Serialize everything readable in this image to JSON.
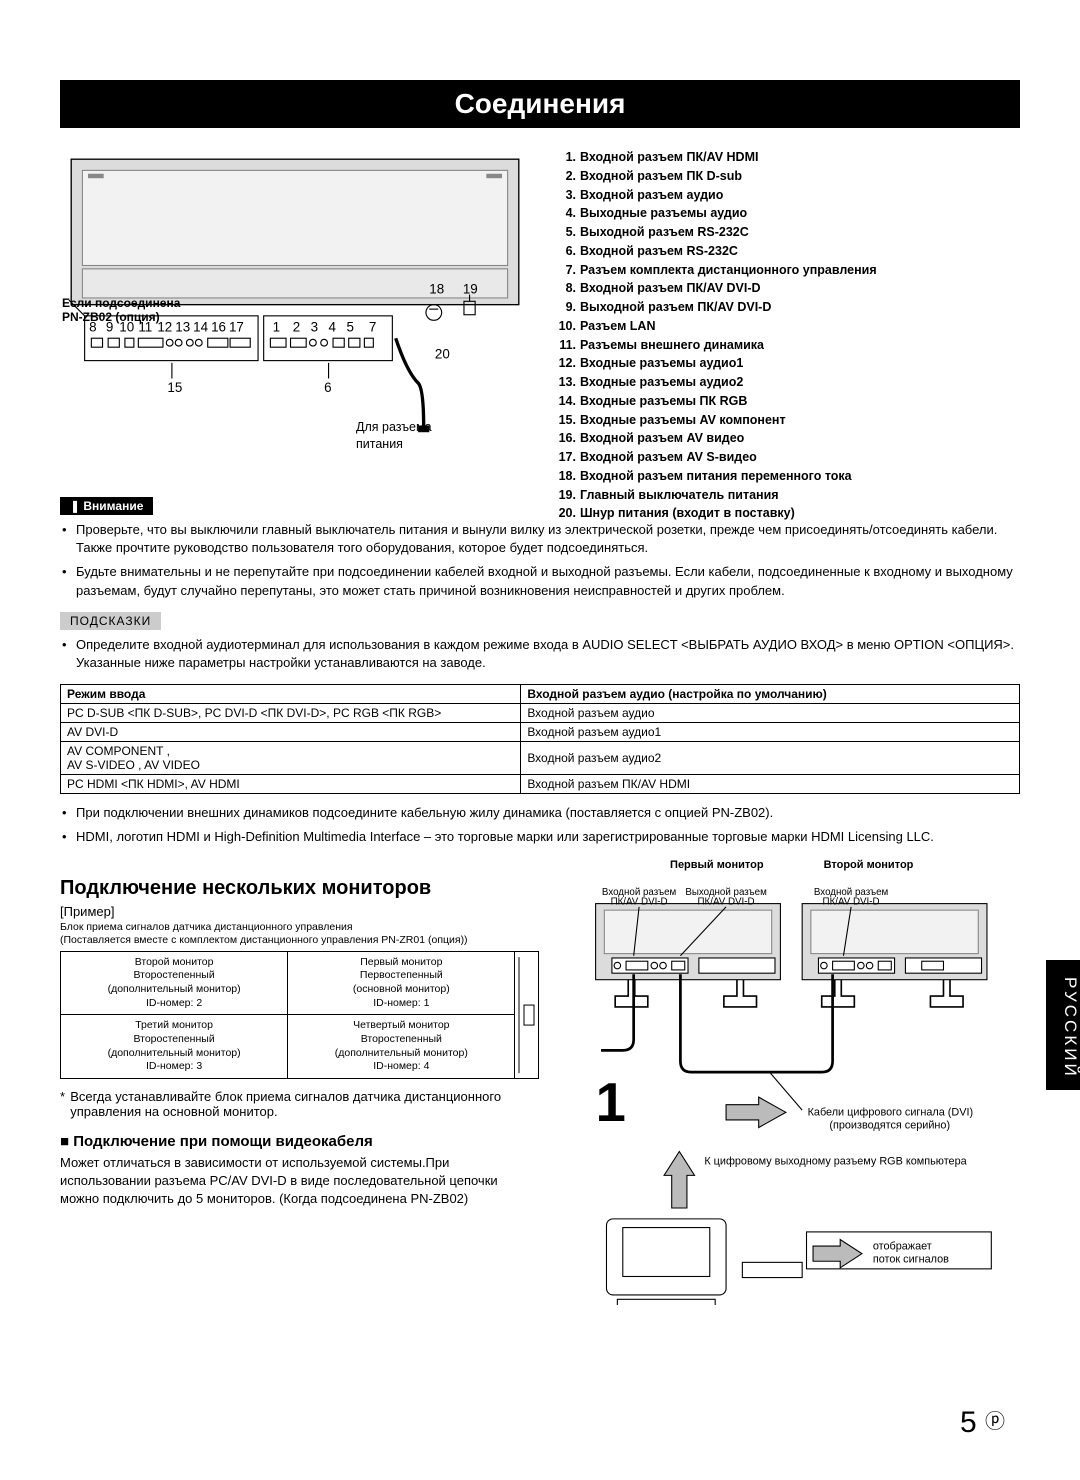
{
  "header": "Соединения",
  "diagram": {
    "option_label_l1": "Если подсоединена",
    "option_label_l2": "PN-ZB02 (опция)",
    "power_note_l1": "Для разъема",
    "power_note_l2": "питания",
    "nums_bottom_left": [
      "8",
      "9",
      "10",
      "11",
      "12",
      "13",
      "14",
      "16",
      "17"
    ],
    "num_15": "15",
    "nums_bottom_right": [
      "1",
      "2",
      "3",
      "4",
      "5",
      "7"
    ],
    "num_6": "6",
    "num_18": "18",
    "num_19": "19",
    "num_20": "20"
  },
  "numlist": [
    "Входной разъем ПК/AV HDMI",
    "Входной разъем ПК D-sub",
    "Входной разъем аудио",
    "Выходные разъемы аудио",
    "Выходной разъем RS-232C",
    "Входной разъем RS-232C",
    "Разъем комплекта дистанционного управления",
    "Входной разъем ПК/AV DVI-D",
    "Выходной разъем ПК/AV DVI-D",
    "Разъем LAN",
    "Разъемы внешнего динамика",
    "Входные разъемы аудио1",
    "Входные разъемы аудио2",
    "Входные разъемы ПК RGB",
    "Входные разъемы AV компонент",
    "Входной разъем AV видео",
    "Входной разъем AV S-видео",
    "Входной разъем питания переменного тока",
    "Главный выключатель питания",
    "Шнур питания (входит в поставку)"
  ],
  "caution_label": "Внимание",
  "caution_bullets": [
    "Проверьте, что вы выключили главный выключатель питания и вынули вилку из электрической розетки, прежде чем присоединять/отсоединять кабели. Также прочтите руководство пользователя того оборудования, которое будет подсоединяться.",
    "Будьте внимательны и не перепутайте при подсоединении кабелей входной и выходной разъемы. Если кабели, подсоединенные к входному и выходному разъемам, будут случайно перепутаны, это может стать причиной возникновения неисправностей и других проблем."
  ],
  "tips_label": "ПОДСКАЗКИ",
  "tips_bullets_1": [
    "Определите входной аудиотерминал для использования в каждом режиме входа в AUDIO SELECT <ВЫБРАТЬ АУДИО ВХОД> в меню OPTION <ОПЦИЯ>. Указанные ниже параметры настройки устанавливаются на заводе."
  ],
  "table": {
    "header_mode": "Режим ввода",
    "header_audio": "Входной разъем аудио (настройка по умолчанию)",
    "rows": [
      [
        "PC D-SUB <ПК D-SUB>, PC DVI-D <ПК DVI-D>, PC RGB <ПК RGB>",
        "Входной разъем аудио"
      ],
      [
        "AV DVI-D",
        "Входной разъем аудио1"
      ],
      [
        "AV COMPONENT <AV КОМПОНЕНТ>,\nAV S-VIDEO <AV S-ВИДЕО>, AV VIDEO <AV ВИДЕО>",
        "Входной разъем аудио2"
      ],
      [
        "PC HDMI <ПК HDMI>, AV HDMI",
        "Входной разъем ПК/AV HDMI"
      ]
    ]
  },
  "tips_bullets_2": [
    "При подключении внешних динамиков подсоедините кабельную жилу динамика (поставляется с опцией PN-ZB02).",
    "HDMI, логотип HDMI и High-Definition Multimedia Interface – это торговые марки или зарегистрированные торговые марки HDMI Licensing LLC."
  ],
  "multi_heading": "Подключение нескольких мониторов",
  "example_label": "[Пример]",
  "example_caption": "Блок приема сигналов датчика дистанционного управления\n(Поставляется вместе с комплектом дистанционного управления PN-ZR01 (опция))",
  "mon_grid": {
    "cells": [
      [
        "Второй монитор\nВторостепенный\n(дополнительный монитор)\nID-номер: 2",
        "Первый монитор\nПервостепенный\n(основной монитор)\nID-номер: 1"
      ],
      [
        "Третий монитор\nВторостепенный\n(дополнительный монитор)\nID-номер: 3",
        "Четвертый монитор\nВторостепенный\n(дополнительный монитор)\nID-номер: 4"
      ]
    ]
  },
  "star_note": "Всегда устанавливайте блок приема сигналов датчика дистанционного управления на основной монитор.",
  "video_cable_heading": "Подключение при помощи видеокабеля",
  "video_cable_body": "Может отличаться в зависимости от используемой системы.При использовании разъема PC/AV DVI-D в виде последовательной цепочки можно подключить до 5 мониторов. (Когда подсоединена PN-ZB02)",
  "conn": {
    "first_monitor": "Первый монитор",
    "second_monitor": "Второй монитор",
    "in_dvi": "Входной разъем\nПК/AV DVI-D",
    "out_dvi": "Выходной разъем\nПК/AV DVI-D",
    "in_dvi2": "Входной разъем\nПК/AV DVI-D",
    "cables_note": "Кабели цифрового сигнала (DVI)\n(производятся серийно)",
    "rgb_note": "К цифровому выходному разъему RGB компьютера",
    "signal_note": "отображает\nпоток сигналов"
  },
  "side_tab": "РУССКИЙ",
  "page_num": "5",
  "page_sym": "Р"
}
